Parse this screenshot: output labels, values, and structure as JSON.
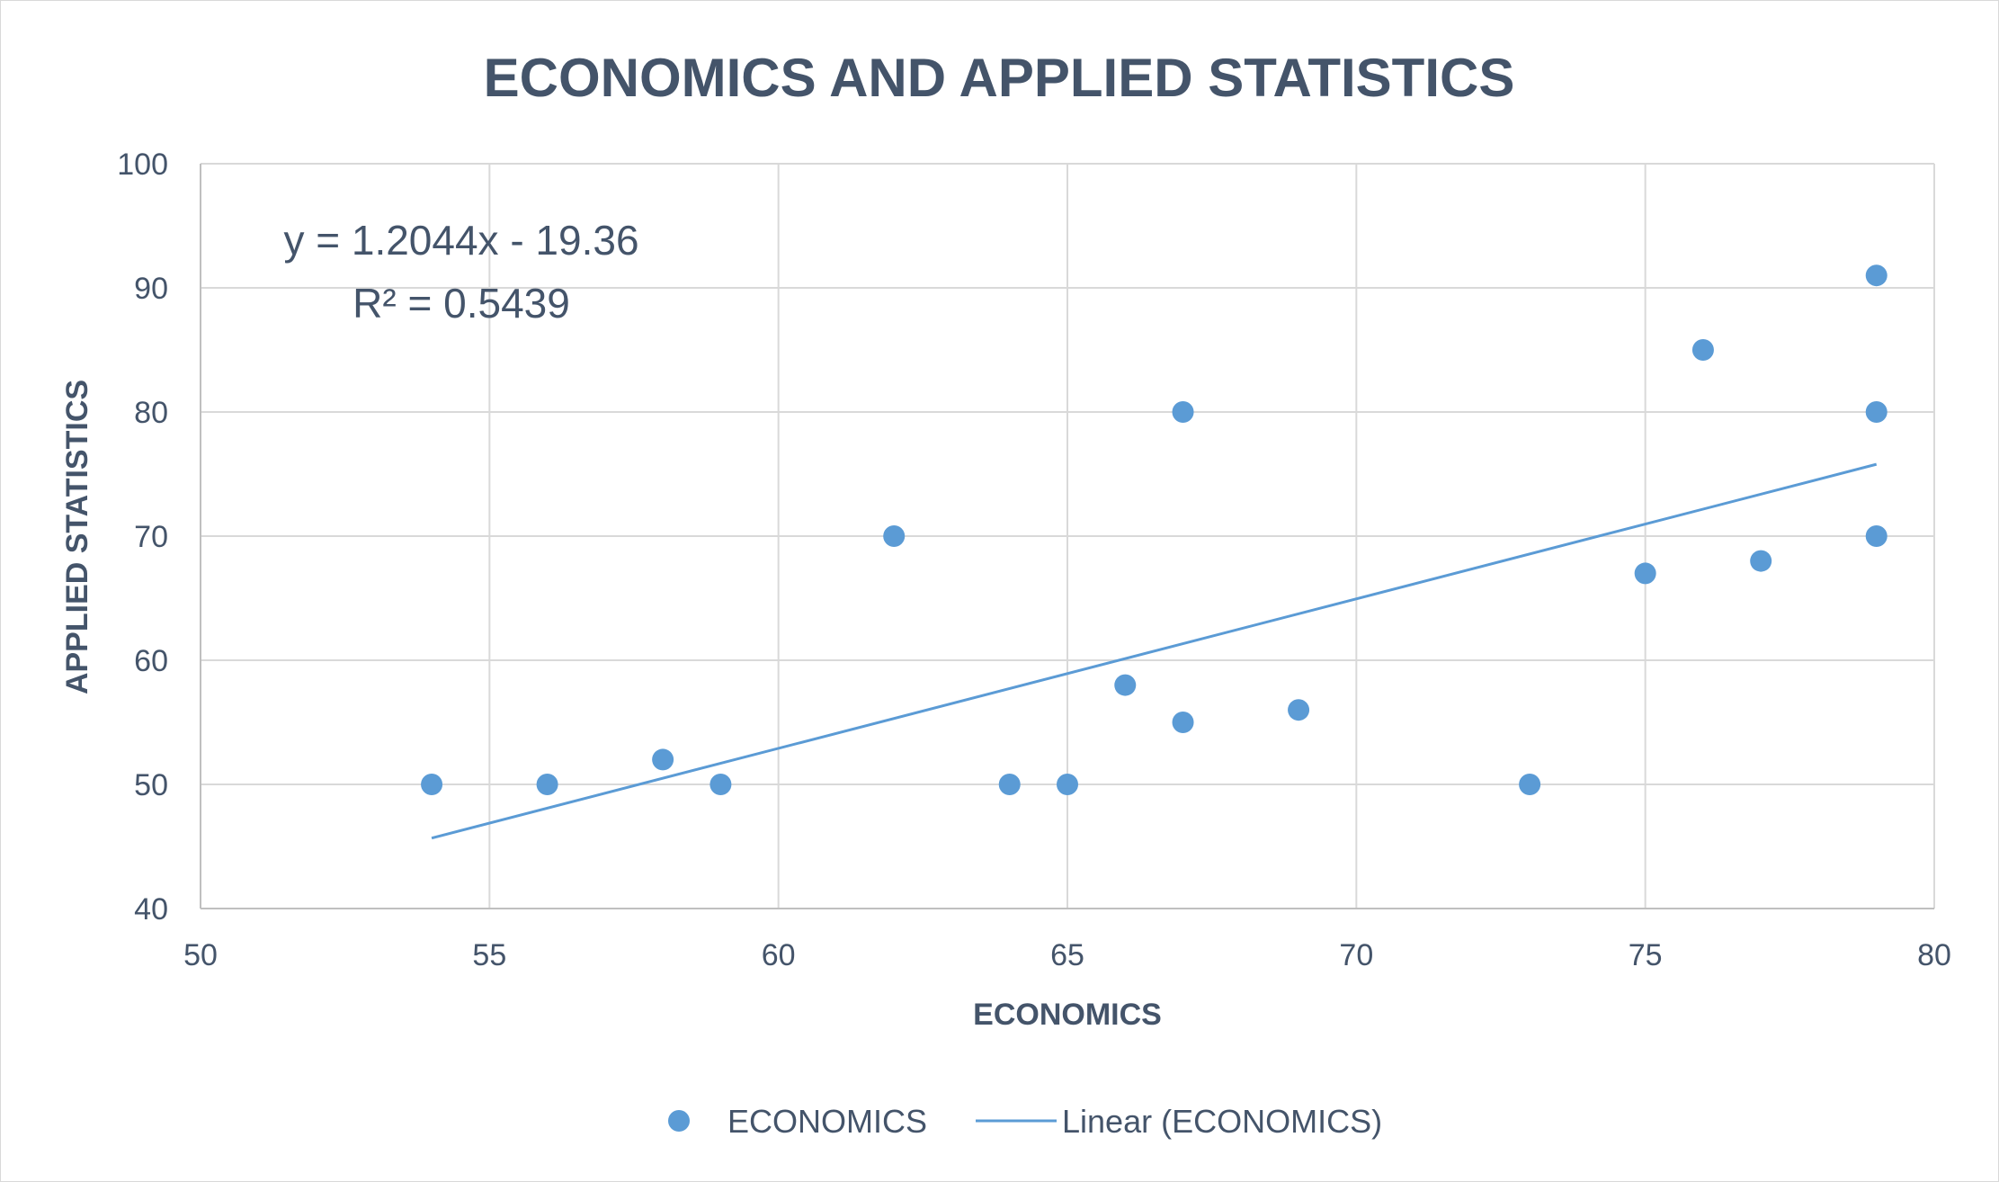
{
  "chart_data": {
    "type": "scatter",
    "title": "ECONOMICS AND APPLIED STATISTICS",
    "xlabel": "ECONOMICS",
    "ylabel": "APPLIED STATISTICS",
    "xlim": [
      50,
      80
    ],
    "ylim": [
      40,
      100
    ],
    "xticks": [
      50,
      55,
      60,
      65,
      70,
      75,
      80
    ],
    "yticks": [
      40,
      50,
      60,
      70,
      80,
      90,
      100
    ],
    "grid": true,
    "legend_position": "bottom",
    "series": [
      {
        "name": "ECONOMICS",
        "color": "#5b9bd5",
        "points": [
          {
            "x": 54,
            "y": 50
          },
          {
            "x": 56,
            "y": 50
          },
          {
            "x": 58,
            "y": 52
          },
          {
            "x": 59,
            "y": 50
          },
          {
            "x": 62,
            "y": 70
          },
          {
            "x": 64,
            "y": 50
          },
          {
            "x": 65,
            "y": 50
          },
          {
            "x": 66,
            "y": 58
          },
          {
            "x": 67,
            "y": 55
          },
          {
            "x": 67,
            "y": 80
          },
          {
            "x": 69,
            "y": 56
          },
          {
            "x": 73,
            "y": 50
          },
          {
            "x": 75,
            "y": 67
          },
          {
            "x": 76,
            "y": 85
          },
          {
            "x": 77,
            "y": 68
          },
          {
            "x": 79,
            "y": 91
          },
          {
            "x": 79,
            "y": 80
          },
          {
            "x": 79,
            "y": 70
          }
        ]
      }
    ],
    "trendline": {
      "name": "Linear (ECONOMICS)",
      "slope": 1.2044,
      "intercept": -19.36,
      "x_range": [
        54,
        79
      ],
      "equation_label": "y = 1.2044x - 19.36",
      "r2_label": "R² = 0.5439",
      "color": "#5b9bd5"
    }
  }
}
